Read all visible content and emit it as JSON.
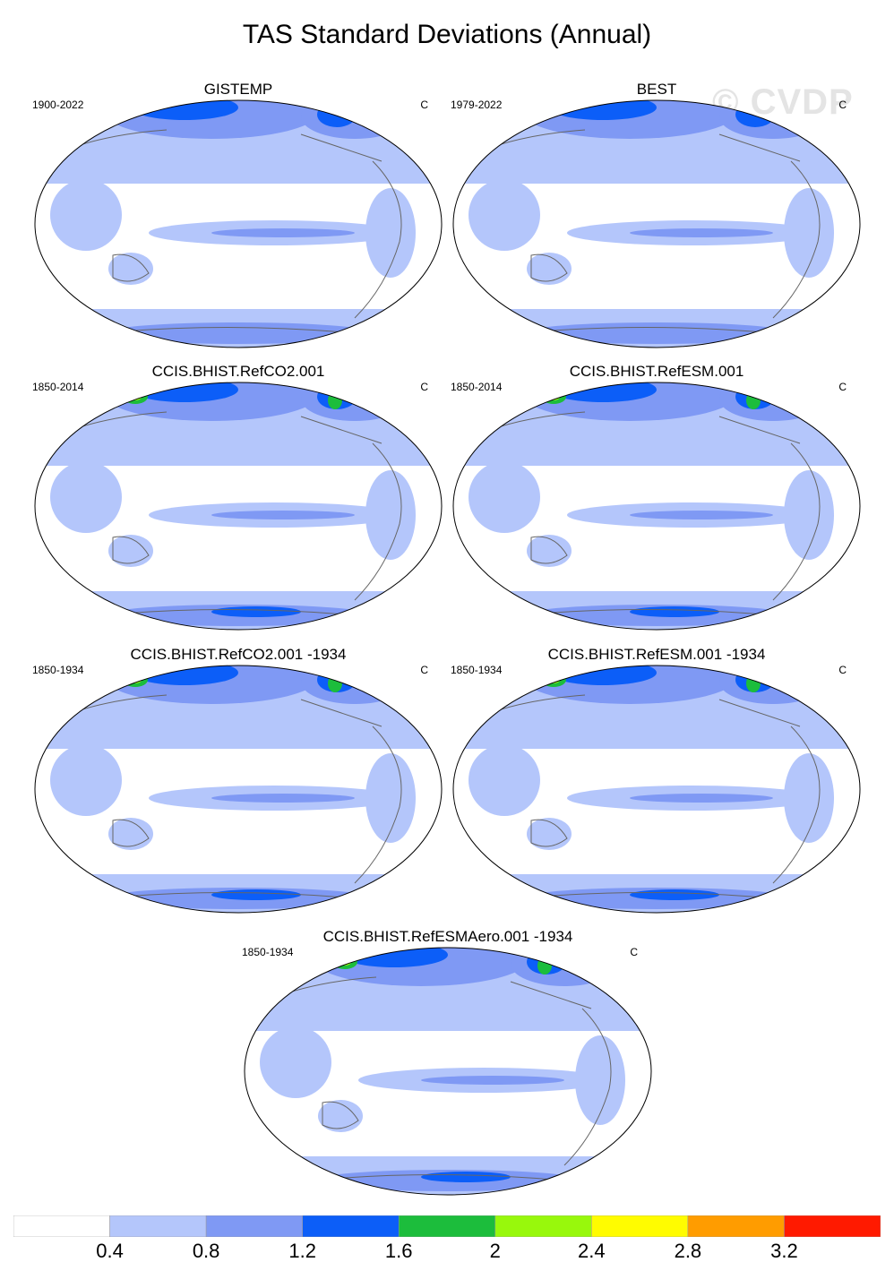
{
  "title": "TAS Standard Deviations (Annual)",
  "watermark": "© CVDP",
  "panels": [
    {
      "title": "GISTEMP",
      "years": "1900-2022",
      "units": "C"
    },
    {
      "title": "BEST",
      "years": "1979-2022",
      "units": "C"
    },
    {
      "title": "CCIS.BHIST.RefCO2.001",
      "years": "1850-2014",
      "units": "C"
    },
    {
      "title": "CCIS.BHIST.RefESM.001",
      "years": "1850-2014",
      "units": "C"
    },
    {
      "title": "CCIS.BHIST.RefCO2.001 -1934",
      "years": "1850-1934",
      "units": "C"
    },
    {
      "title": "CCIS.BHIST.RefESM.001 -1934",
      "years": "1850-1934",
      "units": "C"
    },
    {
      "title": "CCIS.BHIST.RefESMAero.001 -1934",
      "years": "1850-1934",
      "units": "C"
    }
  ],
  "colorbar": {
    "colors": [
      "#ffffff",
      "#b4c6fb",
      "#7f99f4",
      "#0c5ef8",
      "#1cbd3c",
      "#98f80c",
      "#fffc00",
      "#ff9c00",
      "#ff1a00"
    ],
    "labels": [
      "0.4",
      "0.8",
      "1.2",
      "1.6",
      "2",
      "2.4",
      "2.8",
      "3.2"
    ]
  }
}
